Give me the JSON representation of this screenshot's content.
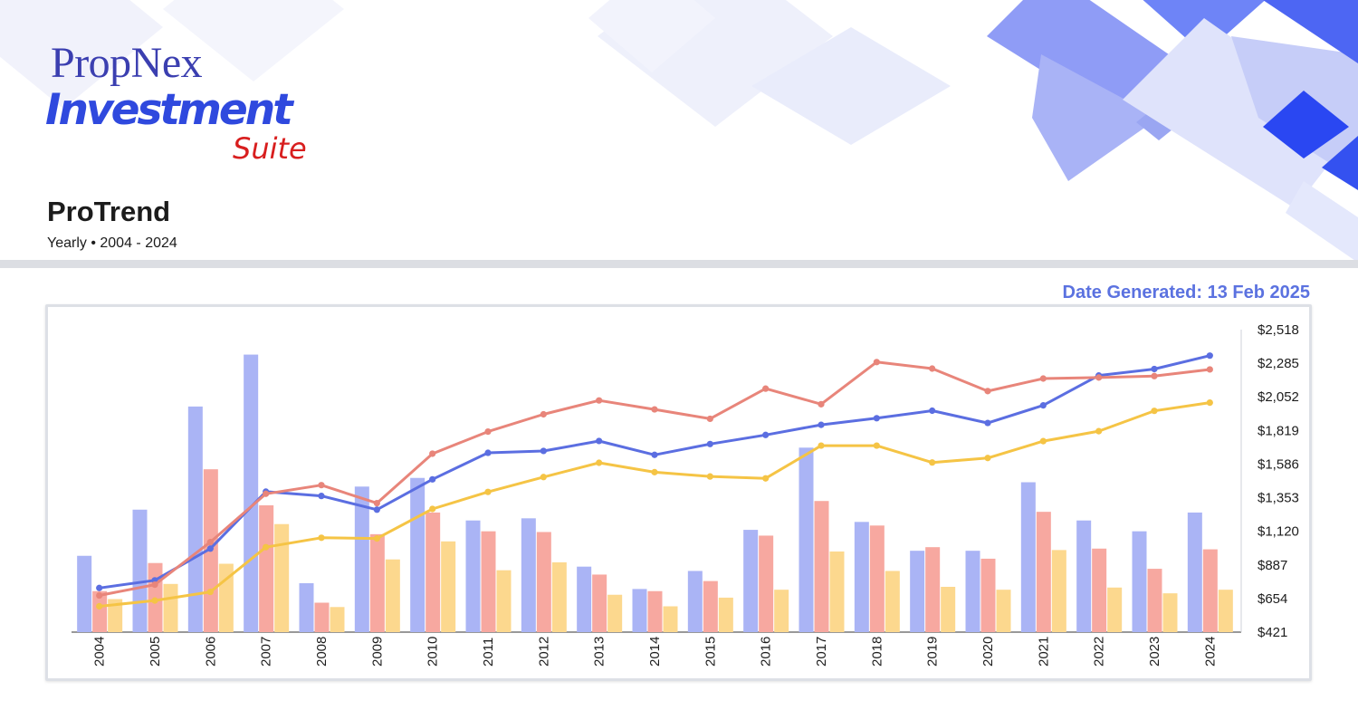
{
  "brand": {
    "line1": "PropNex",
    "line2": "Investment",
    "line3": "Suite",
    "colors": {
      "propnex": "#3b3fb0",
      "investment": "#2f49de",
      "suite": "#d81e1e"
    }
  },
  "header": {
    "title": "ProTrend",
    "subtitle": "Yearly • 2004 - 2024",
    "date_generated": "Date Generated: 13 Feb 2025"
  },
  "chart_data": {
    "type": "bar",
    "categories": [
      "2004",
      "2005",
      "2006",
      "2007",
      "2008",
      "2009",
      "2010",
      "2011",
      "2012",
      "2013",
      "2014",
      "2015",
      "2016",
      "2017",
      "2018",
      "2019",
      "2020",
      "2021",
      "2022",
      "2023",
      "2024"
    ],
    "y_axis_side": "right",
    "yticks": [
      "$2,518",
      "$2,285",
      "$2,052",
      "$1,819",
      "$1,586",
      "$1,353",
      "$1,120",
      "$887",
      "$654",
      "$421"
    ],
    "ylim": [
      421,
      2518
    ],
    "grid": false,
    "bar_series": [
      {
        "color": "#aab4f5",
        "values": [
          950,
          1270,
          1985,
          2345,
          760,
          1430,
          1490,
          1195,
          1210,
          875,
          720,
          845,
          1130,
          1700,
          1185,
          985,
          985,
          1460,
          1195,
          1120,
          1250
        ]
      },
      {
        "color": "#f7a8a0",
        "values": [
          705,
          900,
          1550,
          1300,
          625,
          1100,
          1250,
          1120,
          1115,
          820,
          705,
          775,
          1090,
          1330,
          1160,
          1010,
          930,
          1255,
          1000,
          860,
          995
        ]
      },
      {
        "color": "#fcd88e",
        "values": [
          650,
          755,
          895,
          1170,
          595,
          925,
          1050,
          850,
          905,
          680,
          600,
          660,
          715,
          980,
          845,
          735,
          715,
          990,
          730,
          690,
          715
        ]
      }
    ],
    "line_series": [
      {
        "color": "#5b6ee1",
        "values": [
          727,
          780,
          1000,
          1395,
          1365,
          1270,
          1480,
          1664,
          1677,
          1746,
          1650,
          1725,
          1788,
          1858,
          1904,
          1956,
          1871,
          1993,
          2200,
          2245,
          2338
        ]
      },
      {
        "color": "#e8857a",
        "values": [
          675,
          750,
          1045,
          1380,
          1440,
          1315,
          1658,
          1811,
          1931,
          2027,
          1965,
          1900,
          2109,
          2001,
          2293,
          2248,
          2092,
          2179,
          2186,
          2196,
          2242
        ]
      },
      {
        "color": "#f5c445",
        "values": [
          600,
          640,
          700,
          1010,
          1075,
          1070,
          1275,
          1393,
          1496,
          1595,
          1530,
          1500,
          1487,
          1714,
          1714,
          1597,
          1628,
          1745,
          1814,
          1955,
          2012
        ]
      }
    ]
  }
}
